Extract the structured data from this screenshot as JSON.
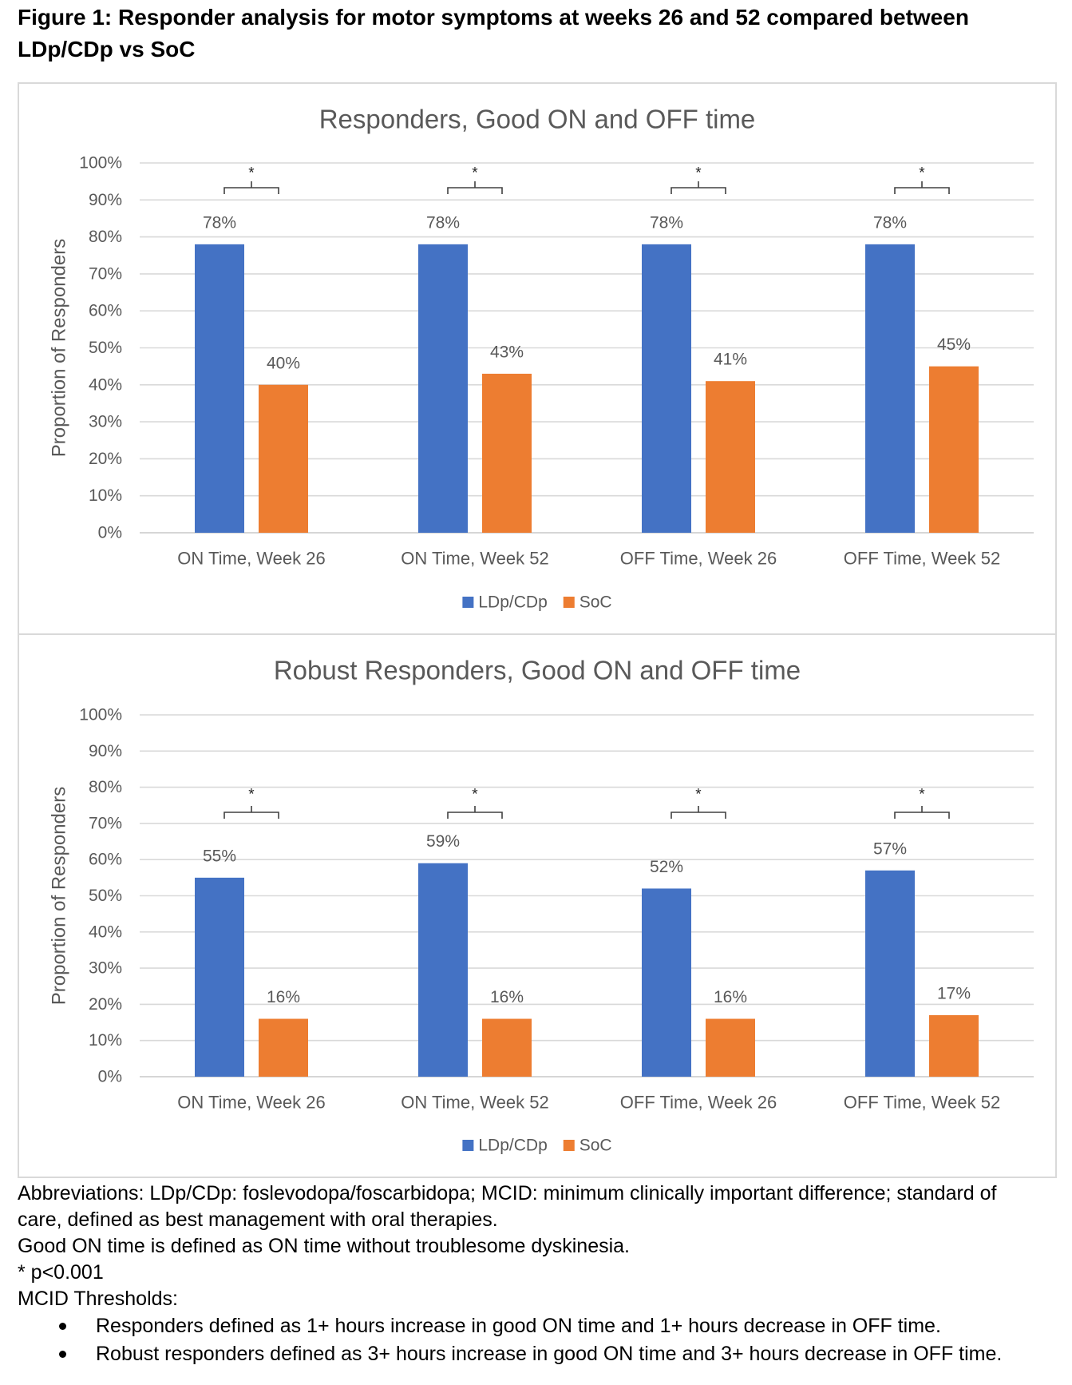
{
  "figure": {
    "title": "Figure 1: Responder analysis for motor symptoms at weeks 26 and 52 compared between LDp/CDp vs SoC"
  },
  "chart_data": [
    {
      "type": "bar",
      "title": "Responders, Good ON and OFF time",
      "xlabel": "",
      "ylabel": "Proportion of Responders",
      "categories": [
        "ON Time, Week 26",
        "ON Time, Week 52",
        "OFF Time, Week 26",
        "OFF Time, Week 52"
      ],
      "ylim": [
        0,
        100
      ],
      "yticks": [
        0,
        10,
        20,
        30,
        40,
        50,
        60,
        70,
        80,
        90,
        100
      ],
      "ytick_labels": [
        "0%",
        "10%",
        "20%",
        "30%",
        "40%",
        "50%",
        "60%",
        "70%",
        "80%",
        "90%",
        "100%"
      ],
      "series": [
        {
          "name": "LDp/CDp",
          "color": "#4472C4",
          "values": [
            78,
            78,
            78,
            78
          ],
          "labels": [
            "78%",
            "78%",
            "78%",
            "78%"
          ]
        },
        {
          "name": "SoC",
          "color": "#ED7D31",
          "values": [
            40,
            43,
            41,
            45
          ],
          "labels": [
            "40%",
            "43%",
            "41%",
            "45%"
          ]
        }
      ],
      "significance": {
        "marker": "*",
        "categories": [
          "ON Time, Week 26",
          "ON Time, Week 52",
          "OFF Time, Week 26",
          "OFF Time, Week 52"
        ]
      },
      "grid": true,
      "legend": "bottom"
    },
    {
      "type": "bar",
      "title": "Robust Responders, Good ON and OFF time",
      "xlabel": "",
      "ylabel": "Proportion of Responders",
      "categories": [
        "ON Time, Week 26",
        "ON Time, Week 52",
        "OFF Time, Week 26",
        "OFF Time, Week 52"
      ],
      "ylim": [
        0,
        100
      ],
      "yticks": [
        0,
        10,
        20,
        30,
        40,
        50,
        60,
        70,
        80,
        90,
        100
      ],
      "ytick_labels": [
        "0%",
        "10%",
        "20%",
        "30%",
        "40%",
        "50%",
        "60%",
        "70%",
        "80%",
        "90%",
        "100%"
      ],
      "series": [
        {
          "name": "LDp/CDp",
          "color": "#4472C4",
          "values": [
            55,
            59,
            52,
            57
          ],
          "labels": [
            "55%",
            "59%",
            "52%",
            "57%"
          ]
        },
        {
          "name": "SoC",
          "color": "#ED7D31",
          "values": [
            16,
            16,
            16,
            17
          ],
          "labels": [
            "16%",
            "16%",
            "16%",
            "17%"
          ]
        }
      ],
      "significance": {
        "marker": "*",
        "categories": [
          "ON Time, Week 26",
          "ON Time, Week 52",
          "OFF Time, Week 26",
          "OFF Time, Week 52"
        ]
      },
      "grid": true,
      "legend": "bottom"
    }
  ],
  "footnotes": {
    "abbreviations": "Abbreviations: LDp/CDp: foslevodopa/foscarbidopa; MCID: minimum clinically important difference; standard of care, defined as best management with oral therapies.",
    "good_on_definition": "Good ON time is defined as ON time without troublesome dyskinesia.",
    "significance": "* p<0.001",
    "mcid_heading": "MCID Thresholds:",
    "mcid_bullets": [
      "Responders defined as 1+ hours increase in good ON time and 1+ hours decrease in OFF time.",
      "Robust responders defined as 3+ hours increase in good ON time and 3+ hours decrease in OFF time."
    ]
  }
}
